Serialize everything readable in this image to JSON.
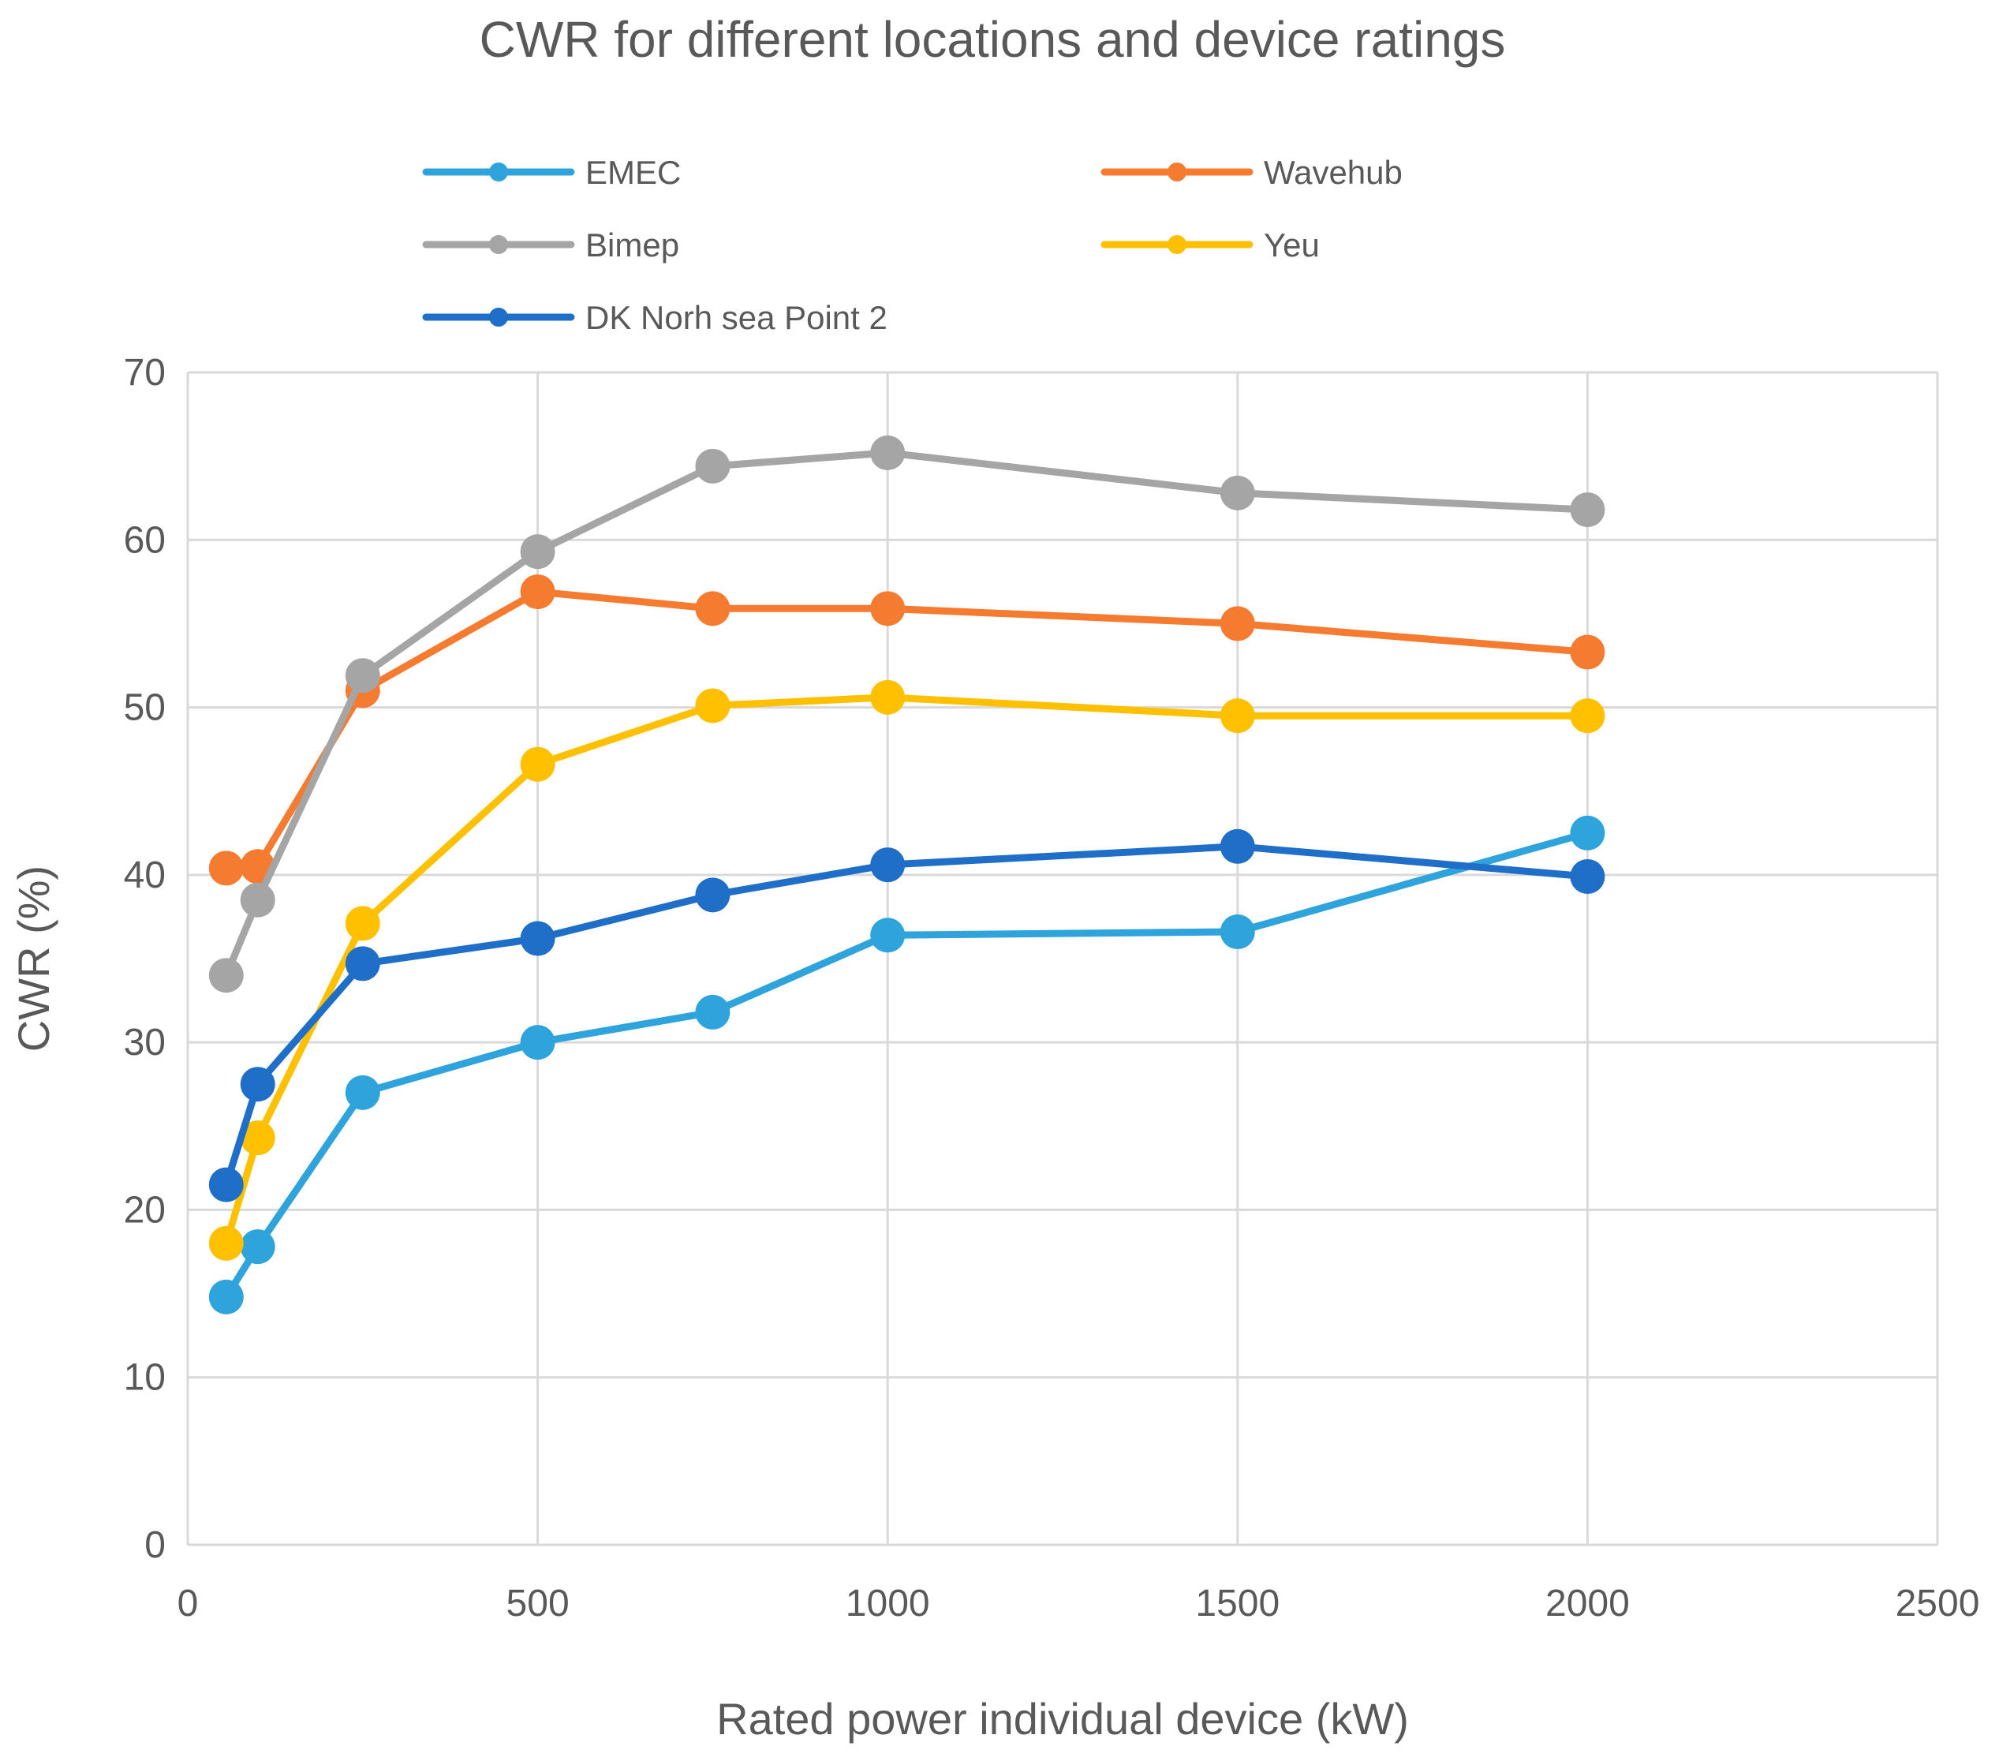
{
  "chart_data": {
    "type": "line",
    "title": "CWR for different locations and device ratings",
    "xlabel": "Rated power individual device (kW)",
    "ylabel": "CWR (%)",
    "xlim": [
      0,
      2500
    ],
    "ylim": [
      0,
      70
    ],
    "xticks": [
      0,
      500,
      1000,
      1500,
      2000,
      2500
    ],
    "yticks": [
      0,
      10,
      20,
      30,
      40,
      50,
      60,
      70
    ],
    "grid": true,
    "legend_position": "top",
    "x": [
      55,
      100,
      250,
      500,
      750,
      1000,
      1500,
      2000
    ],
    "series": [
      {
        "name": "EMEC",
        "color": "#2ea3dc",
        "values": [
          14.8,
          17.8,
          27.0,
          30.0,
          31.8,
          36.4,
          36.6,
          42.5
        ]
      },
      {
        "name": "Wavehub",
        "color": "#f47b30",
        "values": [
          40.4,
          40.5,
          51.0,
          56.9,
          55.9,
          55.9,
          55.0,
          53.3
        ]
      },
      {
        "name": "Bimep",
        "color": "#a5a5a5",
        "values": [
          34.0,
          38.5,
          51.9,
          59.3,
          64.4,
          65.2,
          62.8,
          61.8
        ]
      },
      {
        "name": "Yeu",
        "color": "#ffc000",
        "values": [
          18.0,
          24.3,
          37.1,
          46.6,
          50.1,
          50.6,
          49.5,
          49.5
        ]
      },
      {
        "name": "DK Norh sea Point 2",
        "color": "#1f6fc9",
        "values": [
          21.5,
          27.5,
          34.7,
          36.2,
          38.8,
          40.6,
          41.7,
          39.9
        ]
      }
    ]
  }
}
